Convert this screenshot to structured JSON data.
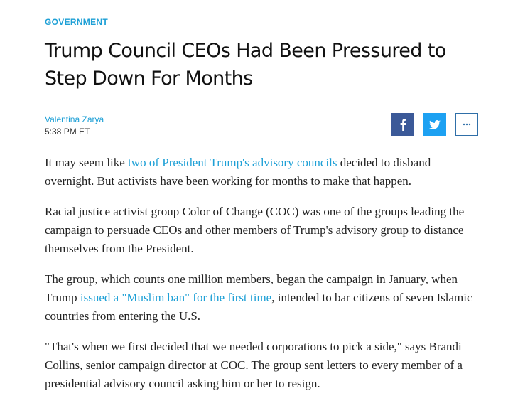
{
  "article": {
    "section": "GOVERNMENT",
    "headline": "Trump Council CEOs Had Been Pressured to Step Down For Months",
    "author": "Valentina Zarya",
    "timestamp": "5:38 PM ET"
  },
  "share": {
    "facebook_icon": "facebook-icon",
    "twitter_icon": "twitter-icon",
    "more_icon": "more-dots-icon",
    "colors": {
      "facebook": "#3b5998",
      "twitter": "#1da1f2",
      "more_border": "#2f6fa8"
    }
  },
  "body": {
    "p1": {
      "before": "It may seem like ",
      "link": "two of President Trump's advisory councils",
      "after": " decided to disband overnight. But activists have been working for months to make that happen."
    },
    "p2": "Racial justice activist group Color of Change (COC) was one of the groups leading the campaign to persuade CEOs and other members of Trump's advisory group to distance themselves from the President.",
    "p3": {
      "before": "The group, which counts one million members, began the campaign in January, when Trump ",
      "link": "issued a \"Muslim ban\" for the first time",
      "after": ", intended to bar citizens of seven Islamic countries from entering the U.S."
    },
    "p4": "\"That's when we first decided that we needed corporations to pick a side,\" says Brandi Collins, senior campaign director at COC. The group sent letters to every member of a presidential advisory council asking him or her to resign."
  },
  "theme": {
    "accent": "#1ea0d6",
    "text": "#222222"
  }
}
